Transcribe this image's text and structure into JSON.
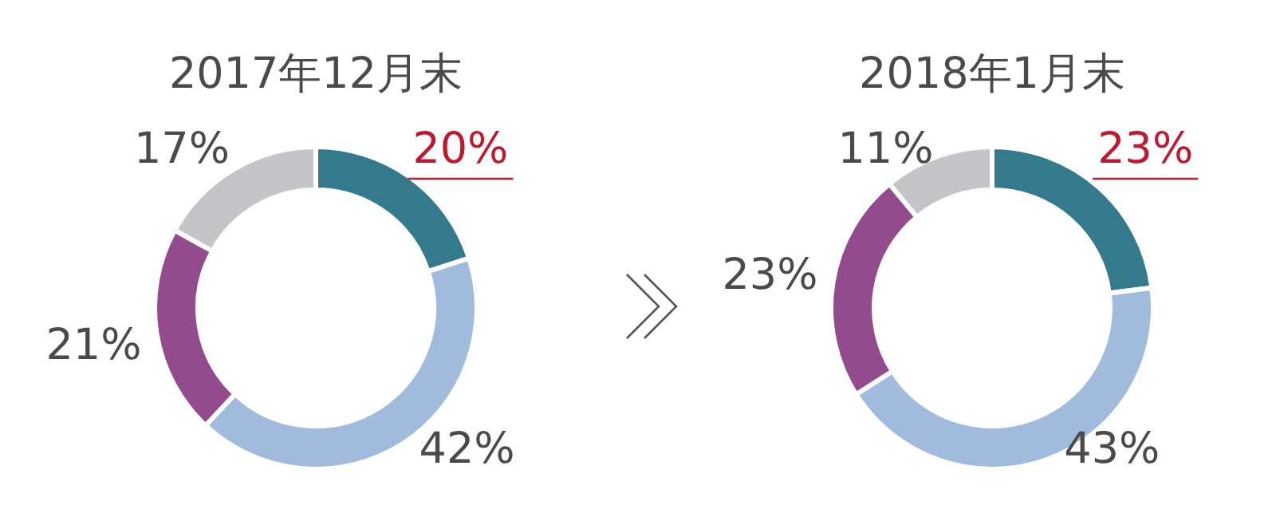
{
  "chart_data": [
    {
      "type": "donut",
      "title": "2017年12月末",
      "categories": [
        null,
        null,
        null,
        null
      ],
      "values": [
        20,
        42,
        21,
        17
      ],
      "value_labels": [
        "20%",
        "42%",
        "21%",
        "17%"
      ],
      "colors": [
        "#357a8c",
        "#a0bbdc",
        "#924c8e",
        "#c5c5c7"
      ]
    },
    {
      "type": "donut",
      "title": "2018年1月末",
      "categories": [
        null,
        null,
        null,
        null
      ],
      "values": [
        23,
        43,
        23,
        11
      ],
      "value_labels": [
        "23%",
        "43%",
        "23%",
        "11%"
      ],
      "colors": [
        "#357a8c",
        "#a0bbdc",
        "#924c8e",
        "#c5c5c7"
      ]
    }
  ]
}
